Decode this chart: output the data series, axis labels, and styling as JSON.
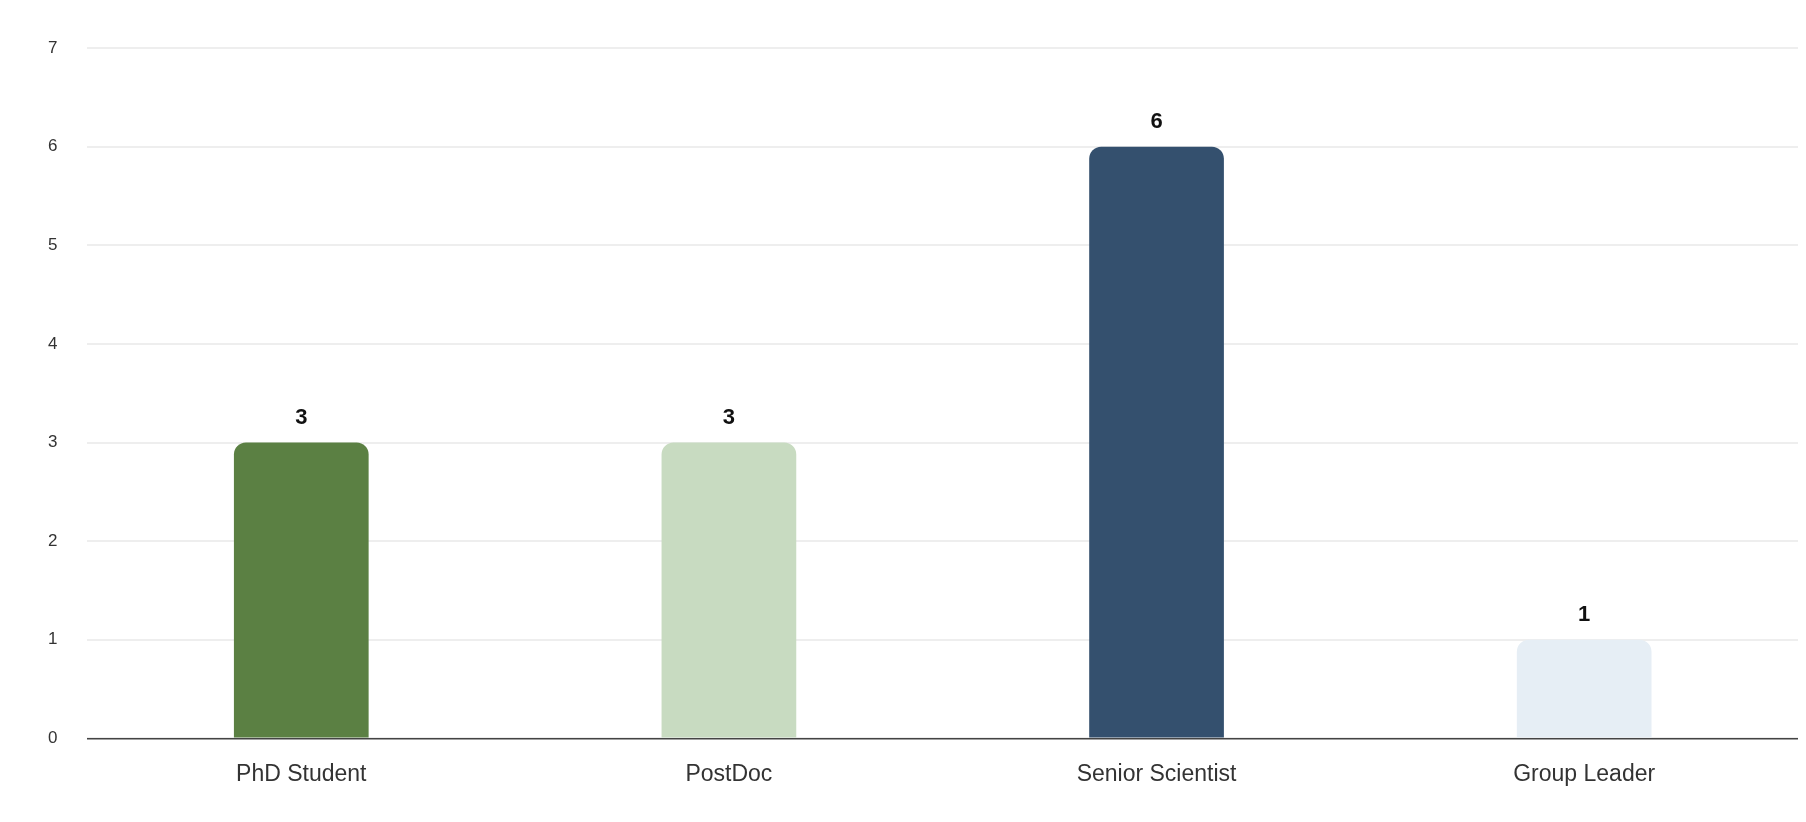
{
  "chart_data": {
    "type": "bar",
    "categories": [
      "PhD Student",
      "PostDoc",
      "Senior Scientist",
      "Group Leader"
    ],
    "values": [
      3,
      3,
      6,
      1
    ],
    "colors": [
      "#5b8043",
      "#c8dbc1",
      "#34506e",
      "#e6eef5"
    ],
    "ylim": [
      0,
      7
    ],
    "yticks": [
      0,
      1,
      2,
      3,
      4,
      5,
      6,
      7
    ],
    "grid": "y",
    "data_labels": true
  }
}
